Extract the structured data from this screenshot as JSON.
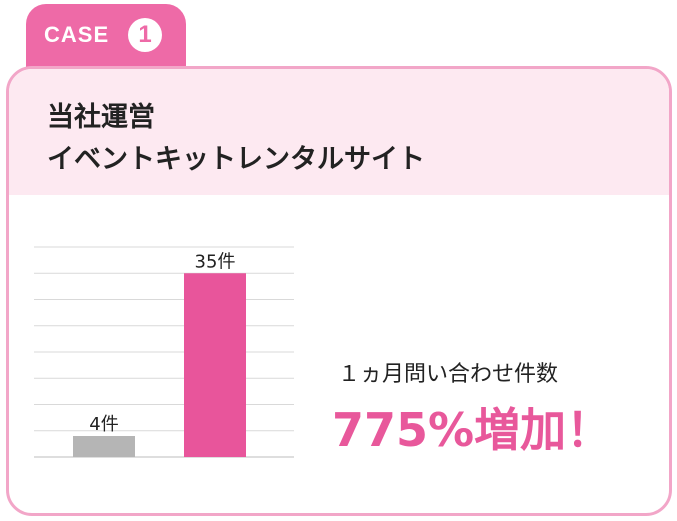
{
  "badge": {
    "label": "CASE",
    "number": "1"
  },
  "header": {
    "title_line1": "当社運営",
    "title_line2": "イベントキットレンタルサイト"
  },
  "metric": {
    "label": "１ヵ月問い合わせ件数",
    "value": "775%増加！"
  },
  "colors": {
    "accent": "#ee6aa7",
    "bar_after": "#e8559b",
    "bar_before": "#b5b5b5",
    "header_bg": "#fde9f1",
    "border": "#f2a6c8"
  },
  "chart_data": {
    "type": "bar",
    "categories": [
      "",
      ""
    ],
    "values": [
      4,
      35
    ],
    "data_labels": [
      "4件",
      "35件"
    ],
    "ylim": [
      0,
      40
    ],
    "grid": true
  }
}
